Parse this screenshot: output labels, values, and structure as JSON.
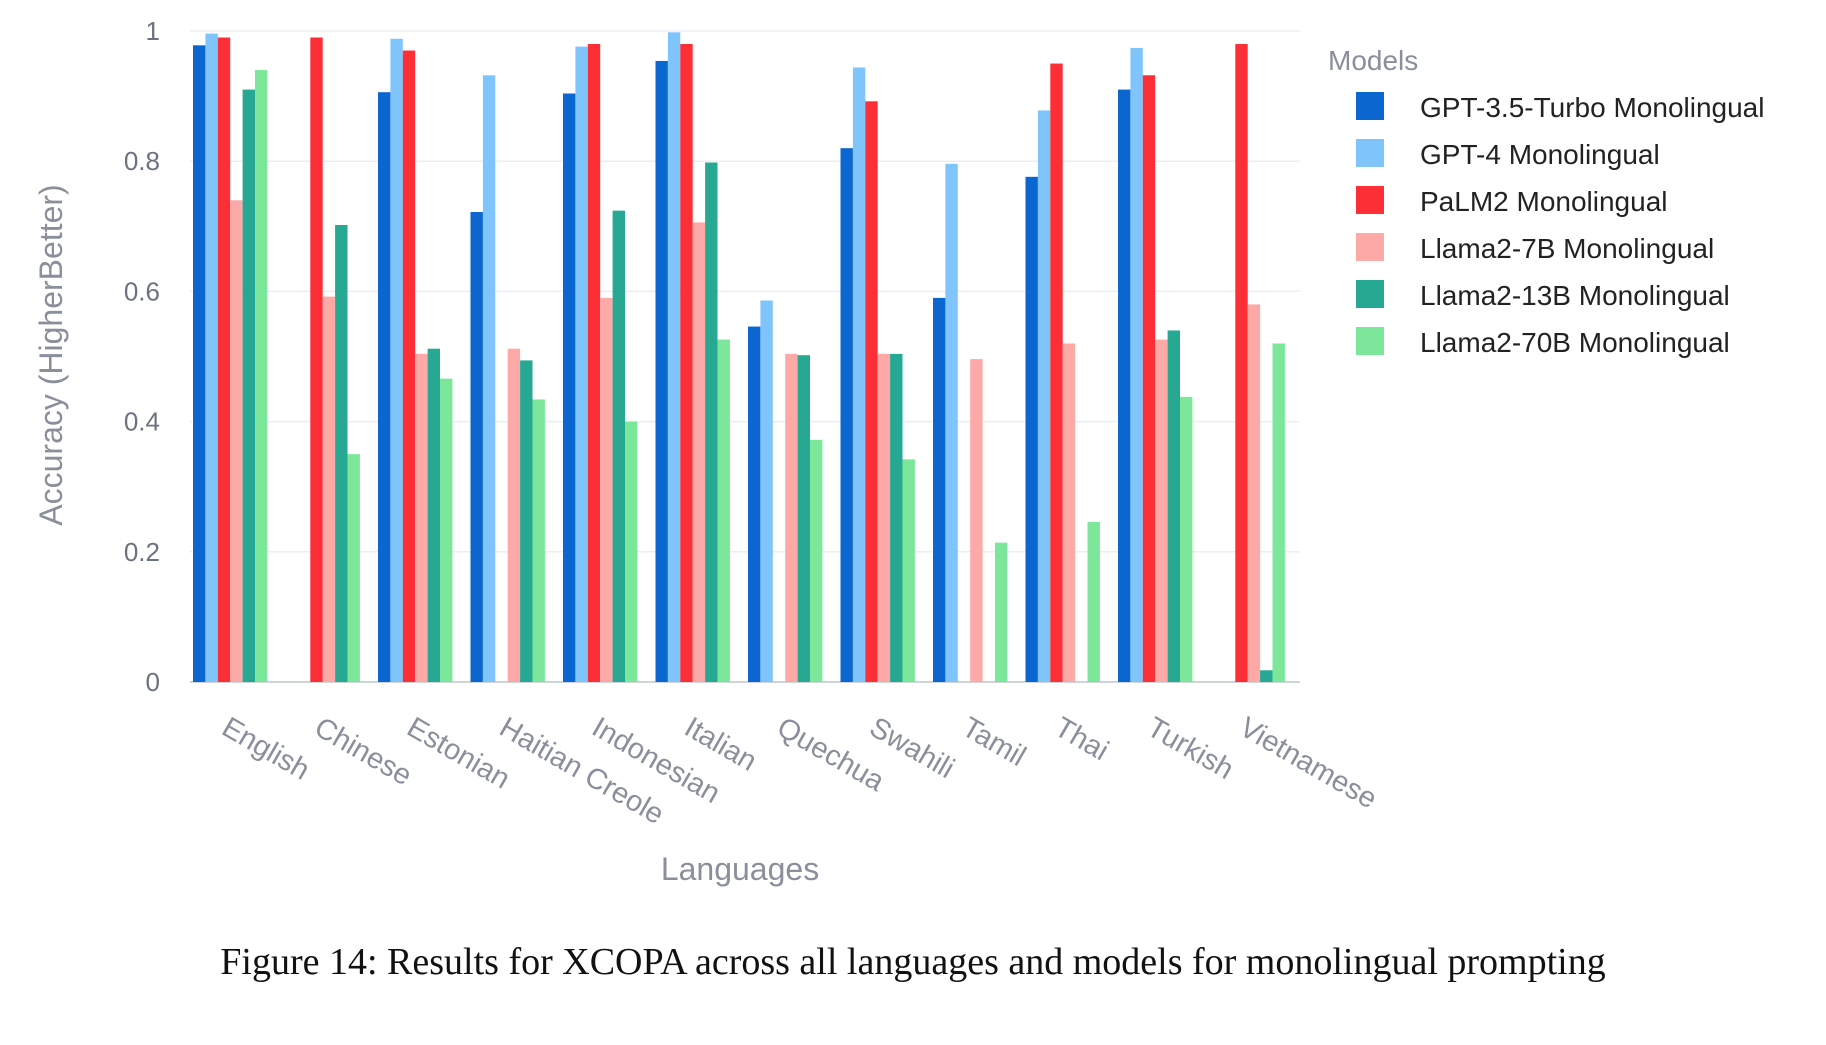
{
  "chart_data": {
    "type": "bar",
    "title": "",
    "xlabel": "Languages",
    "ylabel": "Accuracy (HigherBetter)",
    "ylim": [
      0,
      1
    ],
    "yticks": [
      0,
      0.2,
      0.4,
      0.6,
      0.8,
      1
    ],
    "ytick_labels": [
      "0",
      "0.2",
      "0.4",
      "0.6",
      "0.8",
      "1"
    ],
    "grid": true,
    "legend_title": "Models",
    "legend_position": "right",
    "categories": [
      "English",
      "Chinese",
      "Estonian",
      "Haitian Creole",
      "Indonesian",
      "Italian",
      "Quechua",
      "Swahili",
      "Tamil",
      "Thai",
      "Turkish",
      "Vietnamese"
    ],
    "series": [
      {
        "name": "GPT-3.5-Turbo Monolingual",
        "color": "#0b66d0",
        "values": [
          0.978,
          null,
          0.906,
          0.722,
          0.904,
          0.954,
          0.546,
          0.82,
          0.59,
          0.776,
          0.91,
          null
        ]
      },
      {
        "name": "GPT-4 Monolingual",
        "color": "#80c4fc",
        "values": [
          0.996,
          null,
          0.988,
          0.932,
          0.976,
          0.998,
          0.586,
          0.944,
          0.796,
          0.878,
          0.974,
          null
        ]
      },
      {
        "name": "PaLM2 Monolingual",
        "color": "#fb2f35",
        "values": [
          0.99,
          0.99,
          0.97,
          null,
          0.98,
          0.98,
          null,
          0.892,
          null,
          0.95,
          0.932,
          0.98
        ]
      },
      {
        "name": "Llama2-7B Monolingual",
        "color": "#fca9a8",
        "values": [
          0.74,
          0.592,
          0.504,
          0.512,
          0.59,
          0.706,
          0.504,
          0.504,
          0.496,
          0.52,
          0.526,
          0.58
        ]
      },
      {
        "name": "Llama2-13B Monolingual",
        "color": "#26a892",
        "values": [
          0.91,
          0.702,
          0.512,
          0.494,
          0.724,
          0.798,
          0.502,
          0.504,
          null,
          null,
          0.54,
          0.018
        ]
      },
      {
        "name": "Llama2-70B Monolingual",
        "color": "#7ce79b",
        "values": [
          0.94,
          0.35,
          0.466,
          0.434,
          0.4,
          0.526,
          0.372,
          0.342,
          0.214,
          0.246,
          0.438,
          0.52
        ]
      }
    ]
  },
  "caption": "Figure 14: Results for XCOPA across all languages and models for monolingual prompting"
}
